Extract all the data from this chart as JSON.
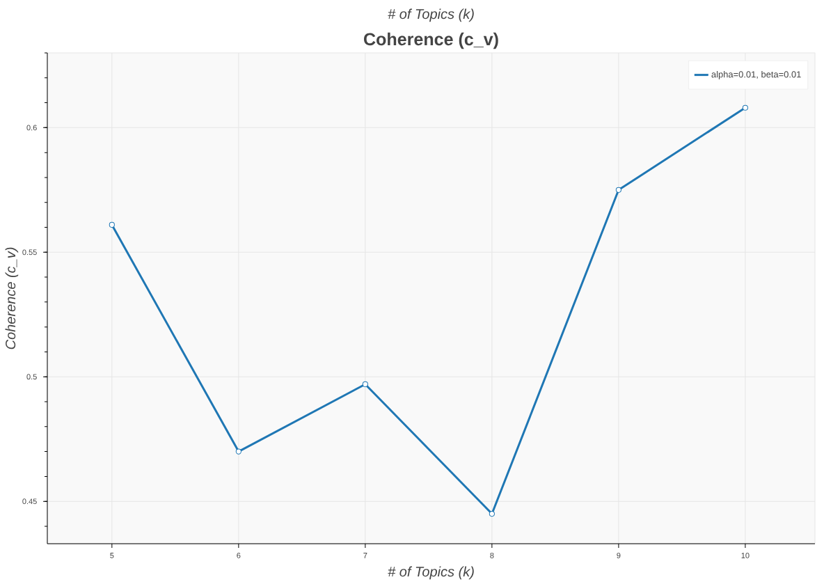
{
  "chart_data": {
    "type": "line",
    "title": "Coherence (c_v)",
    "xlabel": "# of Topics (k)",
    "ylabel": "Coherence (c_v)",
    "annotations": [
      "# of Topics (k)"
    ],
    "x": [
      5,
      6,
      7,
      8,
      9,
      10
    ],
    "series": [
      {
        "name": "alpha=0.01, beta=0.01",
        "color": "#1f77b4",
        "values": [
          0.561,
          0.47,
          0.497,
          0.445,
          0.575,
          0.608
        ]
      }
    ],
    "xlim": [
      4.49,
      10.55
    ],
    "ylim": [
      0.433,
      0.63
    ],
    "xticks": [
      5,
      6,
      7,
      8,
      9,
      10
    ],
    "yticks": [
      0.45,
      0.5,
      0.55,
      0.6
    ],
    "grid": true,
    "legend": "top right",
    "marker": "circle",
    "line_style": "solid"
  }
}
